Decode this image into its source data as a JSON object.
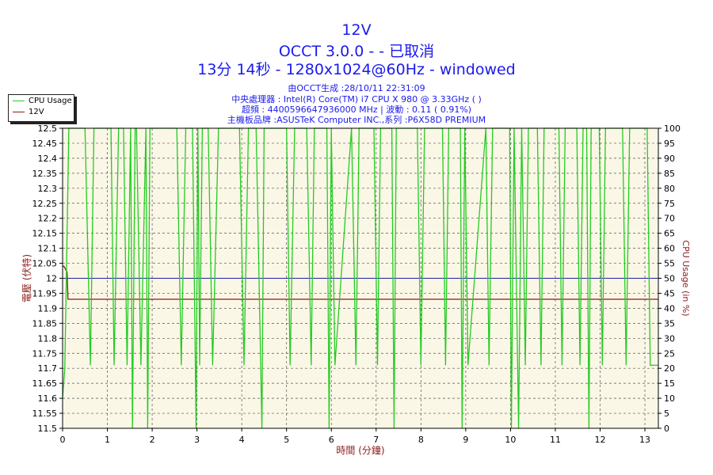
{
  "header": {
    "title_line1": "12V",
    "title_line2": "OCCT 3.0.0 -  - 已取消",
    "title_line3": "13分 14秒 - 1280x1024@60Hz - windowed",
    "info_line1": "由OCCT生成 :28/10/11 22:31:09",
    "info_line2": "中央處理器 : Intel(R) Core(TM) i7 CPU X 980 @ 3.33GHz (        )",
    "info_line3": "超頻 : 4400596647936000 MHz | 波動 : 0.11 ( 0.91%)",
    "info_line4": "主機板品牌 :ASUSTeK Computer INC.,系列 :P6X58D PREMIUM"
  },
  "legend": [
    {
      "label": "CPU Usage",
      "color": "#22cc22"
    },
    {
      "label": "12V",
      "color": "#8b1a1a"
    }
  ],
  "chart_data": {
    "type": "line",
    "xlabel": "時間 (分鐘)",
    "ylabel_left": "電壓 (伏特)",
    "ylabel_right": "CPU Usage (in %)",
    "xlim": [
      0,
      13.3
    ],
    "ylim_left": [
      11.5,
      12.5
    ],
    "ylim_right": [
      0,
      100
    ],
    "x_ticks": [
      "0",
      "1",
      "2",
      "3",
      "4",
      "5",
      "6",
      "7",
      "8",
      "9",
      "10",
      "11",
      "12",
      "13"
    ],
    "y_ticks_left": [
      "11.5",
      "11.55",
      "11.6",
      "11.65",
      "11.7",
      "11.75",
      "11.8",
      "11.85",
      "11.9",
      "11.95",
      "12",
      "12.05",
      "12.1",
      "12.15",
      "12.2",
      "12.25",
      "12.3",
      "12.35",
      "12.4",
      "12.45",
      "12.5"
    ],
    "y_ticks_right": [
      "0",
      "5",
      "10",
      "15",
      "20",
      "25",
      "30",
      "35",
      "40",
      "45",
      "50",
      "55",
      "60",
      "65",
      "70",
      "75",
      "80",
      "85",
      "90",
      "95",
      "100"
    ],
    "grid": true,
    "reference_line": {
      "value": 12.0,
      "color": "#2020aa"
    },
    "series": [
      {
        "name": "12V",
        "axis": "left",
        "color": "#8b1a1a",
        "x": [
          0,
          0.03,
          0.1,
          0.12,
          13.3
        ],
        "y": [
          12.04,
          12.04,
          12.02,
          11.93,
          11.93
        ]
      },
      {
        "name": "CPU Usage",
        "axis": "right",
        "color": "#22cc22",
        "x": [
          0,
          0.05,
          0.1,
          0.14,
          0.5,
          0.62,
          0.7,
          0.78,
          1.08,
          1.15,
          1.25,
          1.36,
          1.44,
          1.52,
          1.56,
          1.62,
          1.65,
          1.75,
          1.86,
          1.9,
          1.95,
          2.05,
          2.55,
          2.65,
          2.75,
          2.9,
          2.98,
          3.02,
          3.06,
          3.12,
          3.25,
          3.35,
          3.48,
          3.55,
          3.62,
          3.95,
          4.05,
          4.15,
          4.32,
          4.45,
          4.5,
          4.55,
          5.0,
          5.08,
          5.18,
          5.45,
          5.55,
          5.62,
          5.68,
          5.75,
          5.9,
          5.95,
          6.0,
          6.08,
          6.45,
          6.55,
          6.62,
          6.95,
          7.03,
          7.1,
          7.18,
          7.35,
          7.4,
          7.45,
          7.53,
          7.92,
          8.0,
          8.08,
          8.48,
          8.55,
          8.62,
          8.88,
          8.92,
          8.98,
          9.05,
          9.45,
          9.52,
          9.6,
          9.98,
          10.02,
          10.08,
          10.18,
          10.25,
          10.33,
          10.4,
          10.6,
          10.68,
          10.75,
          11.08,
          11.15,
          11.22,
          11.48,
          11.55,
          11.62,
          11.7,
          11.75,
          11.8,
          11.98,
          12.05,
          12.12,
          12.5,
          12.58,
          12.66,
          13.05,
          13.12,
          13.2,
          13.3
        ],
        "y": [
          10,
          20,
          65,
          100,
          100,
          21,
          100,
          100,
          100,
          21,
          100,
          100,
          21,
          100,
          0,
          100,
          100,
          21,
          100,
          0,
          100,
          100,
          100,
          21,
          100,
          100,
          0,
          100,
          21,
          100,
          100,
          21,
          100,
          100,
          100,
          100,
          21,
          100,
          100,
          0,
          100,
          100,
          100,
          21,
          100,
          100,
          21,
          100,
          100,
          100,
          100,
          0,
          100,
          21,
          100,
          21,
          100,
          100,
          21,
          100,
          100,
          100,
          0,
          100,
          100,
          100,
          21,
          100,
          100,
          21,
          100,
          100,
          0,
          100,
          21,
          100,
          21,
          100,
          100,
          0,
          100,
          0,
          100,
          21,
          100,
          100,
          21,
          100,
          100,
          21,
          100,
          100,
          21,
          100,
          100,
          0,
          100,
          100,
          21,
          100,
          100,
          21,
          100,
          100,
          21,
          21,
          21
        ]
      }
    ]
  }
}
